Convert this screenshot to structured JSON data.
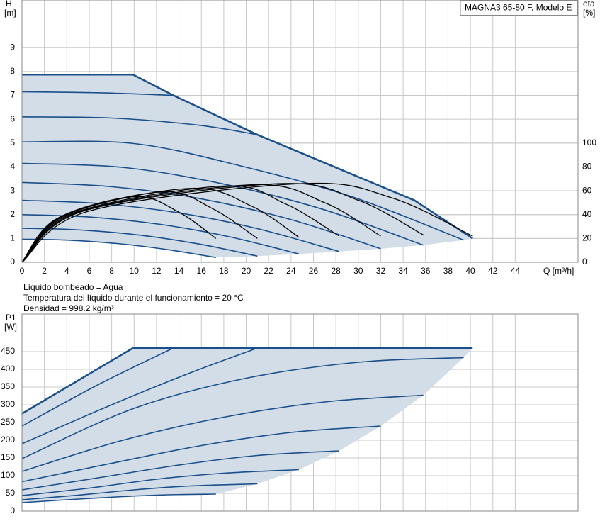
{
  "chart_data": [
    {
      "type": "line",
      "title": "MAGNA3 65-80 F, Modelo E",
      "y_label": "H",
      "y_unit": "[m]",
      "y2_label": "eta",
      "y2_unit": "[%]",
      "x_label": "Q [m³/h]",
      "annotations": [
        "Líquido bombeado = Agua",
        "Temperatura del líquido durante el funcionamiento = 20 °C",
        "Densidad = 998.2 kg/m³"
      ],
      "xlim": [
        0,
        49.6
      ],
      "xticks": [
        0,
        2,
        4,
        6,
        8,
        10,
        12,
        14,
        16,
        18,
        20,
        22,
        24,
        26,
        28,
        30,
        32,
        34,
        36,
        38,
        40,
        42,
        44
      ],
      "ylim": [
        0,
        11
      ],
      "yticks": [
        0,
        1,
        2,
        3,
        4,
        5,
        6,
        7,
        8,
        9
      ],
      "y2lim": [
        0,
        220
      ],
      "y2ticks": [
        0,
        20,
        40,
        60,
        80,
        100
      ],
      "grid": true,
      "area_color": "#d3dde8",
      "series": [
        {
          "color": "#1b4f8a",
          "x": [
            0,
            9.9,
            13.5,
            21,
            35,
            40.2
          ],
          "values": [
            7.87,
            7.87,
            7.0,
            5.35,
            2.6,
            1.0
          ]
        },
        {
          "color": "#1b4f8a",
          "x": [
            0,
            6.75,
            13.5
          ],
          "values": [
            7.15,
            7.11,
            7.0
          ]
        },
        {
          "color": "#1b4f8a",
          "x": [
            0,
            8,
            15.75,
            21
          ],
          "values": [
            6.1,
            6.05,
            5.75,
            5.35
          ]
        },
        {
          "color": "#1b4f8a",
          "x": [
            0,
            10,
            19.7,
            29.55,
            39.4
          ],
          "values": [
            5.05,
            4.98,
            4.02,
            2.73,
            0.93
          ]
        },
        {
          "color": "#1b4f8a",
          "x": [
            0,
            9,
            17.9,
            26.85,
            35.8
          ],
          "values": [
            4.15,
            3.98,
            3.29,
            2.22,
            0.72
          ]
        },
        {
          "color": "#1b4f8a",
          "x": [
            0,
            8,
            16,
            24,
            32
          ],
          "values": [
            3.35,
            3.17,
            2.66,
            1.79,
            0.57
          ]
        },
        {
          "color": "#1b4f8a",
          "x": [
            0,
            7,
            14.15,
            21.2,
            28.3
          ],
          "values": [
            2.6,
            2.46,
            2.06,
            1.39,
            0.45
          ]
        },
        {
          "color": "#1b4f8a",
          "x": [
            0,
            6,
            12.35,
            18.5,
            24.7
          ],
          "values": [
            2.0,
            1.9,
            1.59,
            1.07,
            0.35
          ]
        },
        {
          "color": "#1b4f8a",
          "x": [
            0,
            5,
            10.5,
            15.75,
            21
          ],
          "values": [
            1.43,
            1.36,
            1.14,
            0.77,
            0.26
          ]
        },
        {
          "color": "#1b4f8a",
          "x": [
            0,
            4,
            8.65,
            13,
            17.3
          ],
          "values": [
            0.97,
            0.93,
            0.78,
            0.53,
            0.2
          ]
        },
        {
          "color": "#000000",
          "axis": "y2",
          "x": [
            0,
            3,
            10,
            14,
            17.3
          ],
          "values": [
            0,
            36,
            55,
            42,
            20
          ]
        },
        {
          "color": "#000000",
          "axis": "y2",
          "x": [
            0,
            3.5,
            12.5,
            17,
            21
          ],
          "values": [
            0,
            38,
            59,
            45,
            20
          ]
        },
        {
          "color": "#000000",
          "axis": "y2",
          "x": [
            0,
            4,
            15,
            20.5,
            24.7
          ],
          "values": [
            0,
            40,
            62,
            47,
            21
          ]
        },
        {
          "color": "#000000",
          "axis": "y2",
          "x": [
            0,
            4.5,
            18,
            23.5,
            28.3
          ],
          "values": [
            0,
            41,
            64,
            49,
            22
          ]
        },
        {
          "color": "#000000",
          "axis": "y2",
          "x": [
            0,
            5,
            20.5,
            27,
            32
          ],
          "values": [
            0,
            42,
            65,
            50,
            22
          ]
        },
        {
          "color": "#000000",
          "axis": "y2",
          "x": [
            0,
            5.5,
            23,
            30,
            35.8
          ],
          "values": [
            0,
            43,
            66,
            52,
            23
          ]
        },
        {
          "color": "#000000",
          "axis": "y2",
          "x": [
            0,
            6,
            25,
            33,
            40.2
          ],
          "values": [
            0,
            43,
            66,
            54,
            22
          ]
        }
      ]
    },
    {
      "type": "line",
      "y_label": "P1",
      "y_unit": "[W]",
      "ylim": [
        0,
        556
      ],
      "yticks": [
        0,
        50,
        100,
        150,
        200,
        250,
        300,
        350,
        400,
        450
      ],
      "grid": true,
      "area_color": "#d3dde8",
      "series": [
        {
          "color": "#1b4f8a",
          "x": [
            0,
            9.9,
            40.2
          ],
          "values": [
            275,
            460,
            460
          ]
        },
        {
          "color": "#1b4f8a",
          "x": [
            0,
            7,
            13.5
          ],
          "values": [
            240,
            360,
            460
          ]
        },
        {
          "color": "#1b4f8a",
          "x": [
            0,
            8,
            15,
            21
          ],
          "values": [
            190,
            300,
            390,
            460
          ]
        },
        {
          "color": "#1b4f8a",
          "x": [
            0,
            10,
            20,
            30,
            39.4
          ],
          "values": [
            148,
            290,
            375,
            420,
            433
          ]
        },
        {
          "color": "#1b4f8a",
          "x": [
            0,
            9,
            18,
            27,
            35.8
          ],
          "values": [
            112,
            200,
            265,
            308,
            327
          ]
        },
        {
          "color": "#1b4f8a",
          "x": [
            0,
            8,
            16,
            24,
            32
          ],
          "values": [
            83,
            135,
            185,
            222,
            240
          ]
        },
        {
          "color": "#1b4f8a",
          "x": [
            0,
            7,
            14,
            21,
            28.3
          ],
          "values": [
            60,
            95,
            130,
            157,
            170
          ]
        },
        {
          "color": "#1b4f8a",
          "x": [
            0,
            6,
            12,
            18,
            24.7
          ],
          "values": [
            44,
            65,
            90,
            107,
            117
          ]
        },
        {
          "color": "#1b4f8a",
          "x": [
            0,
            5,
            10,
            15,
            21
          ],
          "values": [
            32,
            45,
            60,
            71,
            77
          ]
        },
        {
          "color": "#1b4f8a",
          "x": [
            0,
            4,
            9,
            13,
            17.3
          ],
          "values": [
            24,
            32,
            41,
            46,
            48
          ]
        }
      ]
    }
  ]
}
